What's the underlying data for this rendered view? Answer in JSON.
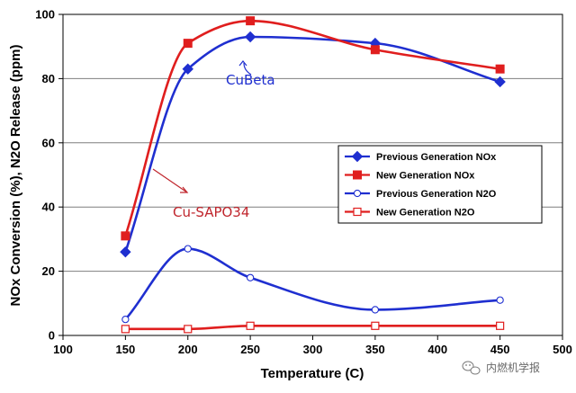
{
  "chart_data": {
    "type": "line",
    "xlabel": "Temperature (C)",
    "ylabel": "NOx Conversion (%), N2O Release (ppm)",
    "xlim": [
      100,
      500
    ],
    "ylim": [
      0,
      100
    ],
    "xticks": [
      100,
      150,
      200,
      250,
      300,
      350,
      400,
      450,
      500
    ],
    "yticks": [
      0,
      20,
      40,
      60,
      80,
      100
    ],
    "grid": "horizontal",
    "legend_position": "right",
    "series": [
      {
        "name": "Previous Generation NOx",
        "color": "#1f2fd0",
        "marker": "diamond-filled",
        "x": [
          150,
          200,
          250,
          350,
          450
        ],
        "y": [
          26,
          83,
          93,
          91,
          79
        ]
      },
      {
        "name": "New Generation NOx",
        "color": "#e01e1e",
        "marker": "square-filled",
        "x": [
          150,
          200,
          250,
          350,
          450
        ],
        "y": [
          31,
          91,
          98,
          89,
          83
        ]
      },
      {
        "name": "Previous Generation N2O",
        "color": "#1f2fd0",
        "marker": "circle-open",
        "x": [
          150,
          200,
          250,
          350,
          450
        ],
        "y": [
          5,
          27,
          18,
          8,
          11
        ]
      },
      {
        "name": "New Generation N2O",
        "color": "#e01e1e",
        "marker": "square-open",
        "x": [
          150,
          200,
          250,
          350,
          450
        ],
        "y": [
          2,
          2,
          3,
          3,
          3
        ]
      }
    ],
    "annotations": [
      {
        "text": "CuBeta",
        "color": "#1f2fd0"
      },
      {
        "text": "Cu-SAPO34",
        "color": "#c0262d"
      }
    ]
  },
  "watermark": {
    "text": "内燃机学报",
    "icon": "wechat-icon"
  }
}
